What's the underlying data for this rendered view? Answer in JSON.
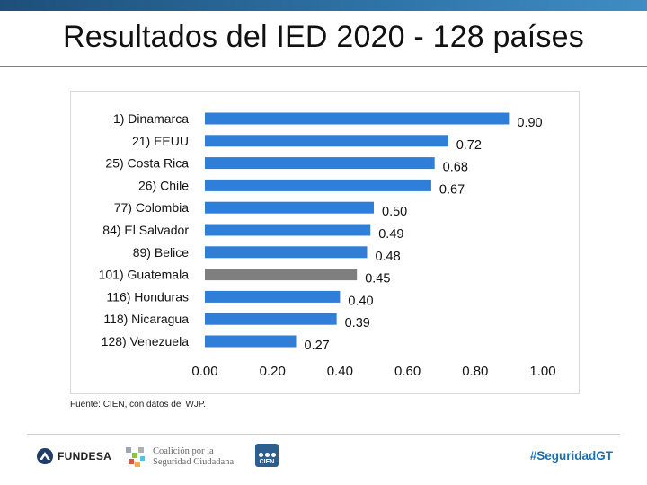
{
  "title": "Resultados del IED 2020 - 128 países",
  "source": "Fuente: CIEN, con datos del WJP.",
  "footer": {
    "fundesa_label": "FUNDESA",
    "coalicion_line1": "Coalición por la",
    "coalicion_line2": "Seguridad Ciudadana",
    "cien_label": "CIEN",
    "hashtag": "#SeguridadGT"
  },
  "chart_data": {
    "type": "bar",
    "orientation": "horizontal",
    "categories": [
      "1) Dinamarca",
      "21) EEUU",
      "25) Costa Rica",
      "26) Chile",
      "77) Colombia",
      "84) El Salvador",
      "89) Belice",
      "101) Guatemala",
      "116) Honduras",
      "118) Nicaragua",
      "128) Venezuela"
    ],
    "values": [
      0.9,
      0.72,
      0.68,
      0.67,
      0.5,
      0.49,
      0.48,
      0.45,
      0.4,
      0.39,
      0.27
    ],
    "value_labels": [
      "0.90",
      "0.72",
      "0.68",
      "0.67",
      "0.50",
      "0.49",
      "0.48",
      "0.45",
      "0.40",
      "0.39",
      "0.27"
    ],
    "highlight": "101) Guatemala",
    "xlim": [
      0,
      1
    ],
    "xticks": [
      "0.00",
      "0.20",
      "0.40",
      "0.60",
      "0.80",
      "1.00"
    ],
    "colors": {
      "bar": "#2f7ed8",
      "highlight": "#7f7f7f"
    },
    "grid": false,
    "legend": "none"
  }
}
